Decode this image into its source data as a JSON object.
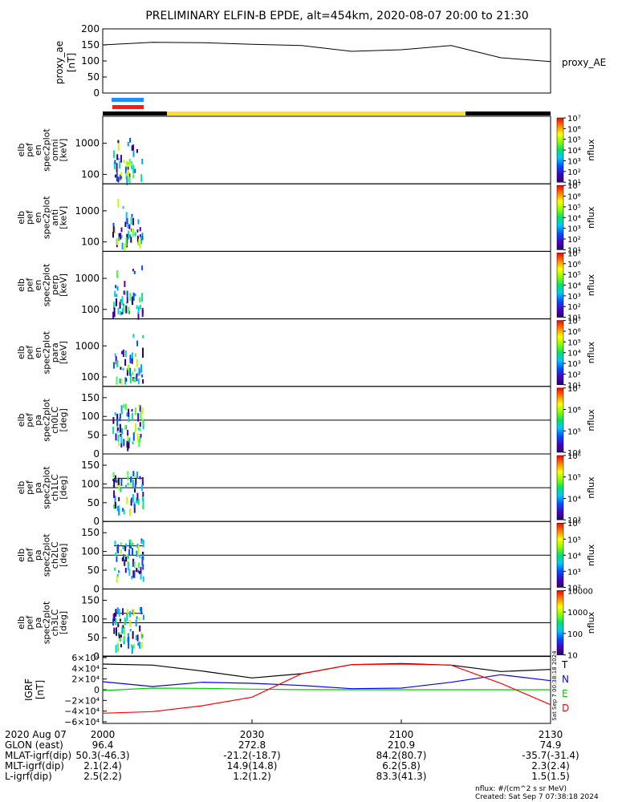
{
  "title": "PRELIMINARY ELFIN-B EPDE, alt=454km, 2020-08-07 20:00 to 21:30",
  "proxy_ae": {
    "ylabel": [
      "proxy_ae",
      "[nT]"
    ],
    "side_label": "proxy_AE",
    "yticks": [
      "200",
      "150",
      "100",
      "50",
      "0"
    ]
  },
  "panels": [
    {
      "ylabel": [
        "elb",
        "pef",
        "en",
        "spec2plot",
        "omni",
        "[keV]"
      ],
      "yticks": [
        "1000",
        "100"
      ],
      "cticks": [
        "10⁷",
        "10⁶",
        "10⁵",
        "10⁴",
        "10³",
        "10²",
        "10¹"
      ],
      "zlabel": "nflux"
    },
    {
      "ylabel": [
        "elb",
        "pef",
        "en",
        "spec2plot",
        "anti",
        "[keV]"
      ],
      "yticks": [
        "1000",
        "100"
      ],
      "cticks": [
        "10⁷",
        "10⁶",
        "10⁵",
        "10⁴",
        "10³",
        "10²",
        "10¹"
      ],
      "zlabel": "nflux"
    },
    {
      "ylabel": [
        "elb",
        "pef",
        "en",
        "spec2plot",
        "perp",
        "[keV]"
      ],
      "yticks": [
        "1000",
        "100"
      ],
      "cticks": [
        "10⁷",
        "10⁶",
        "10⁵",
        "10⁴",
        "10³",
        "10²",
        "10¹"
      ],
      "zlabel": "nflux"
    },
    {
      "ylabel": [
        "elb",
        "pef",
        "en",
        "spec2plot",
        "para",
        "[keV]"
      ],
      "yticks": [
        "1000",
        "100"
      ],
      "cticks": [
        "10⁷",
        "10⁶",
        "10⁵",
        "10⁴",
        "10³",
        "10²",
        "10¹"
      ],
      "zlabel": "nflux"
    },
    {
      "ylabel": [
        "elb",
        "pef",
        "pa",
        "spec2plot",
        "ch0LC",
        "[deg]"
      ],
      "yticks": [
        "150",
        "100",
        "50",
        "0"
      ],
      "cticks": [
        "10⁷",
        "10⁶",
        "10⁵",
        "10⁴"
      ],
      "zlabel": "nflux"
    },
    {
      "ylabel": [
        "elb",
        "pef",
        "pa",
        "spec2plot",
        "ch1LC",
        "[deg]"
      ],
      "yticks": [
        "150",
        "100",
        "50",
        "0"
      ],
      "cticks": [
        "10⁶",
        "10⁵",
        "10⁴",
        "10³"
      ],
      "zlabel": "nflux"
    },
    {
      "ylabel": [
        "elb",
        "pef",
        "pa",
        "spec2plot",
        "ch2LC",
        "[deg]"
      ],
      "yticks": [
        "150",
        "100",
        "50",
        "0"
      ],
      "cticks": [
        "10⁶",
        "10⁵",
        "10⁴",
        "10³",
        "10²"
      ],
      "zlabel": "nflux"
    },
    {
      "ylabel": [
        "elb",
        "pef",
        "pa",
        "spec2plot",
        "ch3LC",
        "[deg]"
      ],
      "yticks": [
        "150",
        "100",
        "50",
        "0"
      ],
      "cticks": [
        "10000",
        "1000",
        "100",
        "10"
      ],
      "zlabel": "nflux"
    }
  ],
  "igrf": {
    "ylabel": [
      "IGRF",
      "[nT]"
    ],
    "yticks": [
      "6×10⁴",
      "4×10⁴",
      "2×10⁴",
      "0",
      "−2×10⁴",
      "−4×10⁴",
      "−6×10⁴"
    ],
    "components": [
      {
        "label": "T",
        "color": "#000000"
      },
      {
        "label": "N",
        "color": "#0000ff"
      },
      {
        "label": "E",
        "color": "#00cc00"
      },
      {
        "label": "D",
        "color": "#ff0000"
      }
    ],
    "side_note": "Sat Sep  7 00:38:18 2024"
  },
  "chart_data": {
    "type": "line",
    "title": "PRELIMINARY ELFIN-B EPDE, alt=454km, 2020-08-07 20:00 to 21:30",
    "x_ticks": [
      "2000",
      "2030",
      "2100",
      "2130"
    ],
    "proxy_ae": {
      "x_min": [
        0,
        10,
        20,
        30,
        40,
        50,
        60,
        70,
        80,
        90
      ],
      "values": [
        150,
        158,
        157,
        152,
        148,
        130,
        135,
        148,
        110,
        98
      ],
      "ylim": [
        0,
        200
      ]
    },
    "igrf_series": [
      {
        "name": "T",
        "x_min": [
          0,
          10,
          20,
          30,
          40,
          50,
          60,
          70,
          80,
          90
        ],
        "values": [
          48000,
          46000,
          35000,
          22000,
          30000,
          47000,
          49000,
          46000,
          34000,
          38000
        ]
      },
      {
        "name": "N",
        "x_min": [
          0,
          10,
          20,
          30,
          40,
          50,
          60,
          70,
          80,
          90
        ],
        "values": [
          15000,
          6000,
          14000,
          12000,
          8000,
          2000,
          3000,
          14000,
          28000,
          17000
        ]
      },
      {
        "name": "E",
        "x_min": [
          0,
          10,
          20,
          30,
          40,
          50,
          60,
          70,
          80,
          90
        ],
        "values": [
          -1500,
          3000,
          2500,
          1000,
          100,
          0,
          0,
          0,
          0,
          0
        ]
      },
      {
        "name": "D",
        "x_min": [
          0,
          10,
          20,
          30,
          40,
          50,
          60,
          70,
          80,
          90
        ],
        "values": [
          -44000,
          -41000,
          -30000,
          -14000,
          30000,
          47000,
          48000,
          46000,
          12000,
          -28000
        ]
      }
    ]
  },
  "footer": {
    "rows": [
      {
        "label": "2020 Aug 07",
        "values": [
          "2000",
          "2030",
          "2100",
          "2130"
        ]
      },
      {
        "label": "GLON (east)",
        "values": [
          "96.4",
          "272.8",
          "210.9",
          "74.9"
        ]
      },
      {
        "label": "MLAT-igrf(dip)",
        "values": [
          "50.3(-46.3)",
          "-21.2(-18.7)",
          "84.2(80.7)",
          "-35.7(-31.4)"
        ]
      },
      {
        "label": "MLT-igrf(dip)",
        "values": [
          "2.1(2.4)",
          "14.9(14.8)",
          "6.2(5.8)",
          "2.3(2.4)"
        ]
      },
      {
        "label": "L-igrf(dip)",
        "values": [
          "2.5(2.2)",
          "1.2(1.2)",
          "83.3(41.3)",
          "1.5(1.5)"
        ]
      }
    ],
    "units_note": "nflux: #/(cm^2 s sr MeV)",
    "created": "Created: Sat Sep  7 07:38:18 2024"
  }
}
